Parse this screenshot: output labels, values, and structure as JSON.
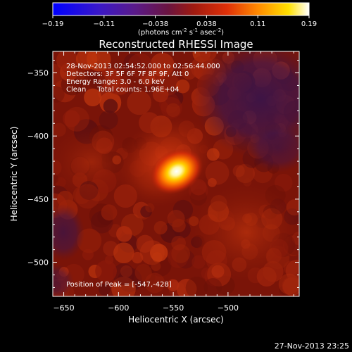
{
  "chart_data": {
    "type": "heatmap",
    "title": "Reconstructed RHESSI Image",
    "xlabel": "Heliocentric X (arcsec)",
    "ylabel": "Heliocentric Y (arcsec)",
    "xlim": [
      -660,
      -435
    ],
    "ylim": [
      -527,
      -333
    ],
    "x_ticks": [
      -650,
      -600,
      -550,
      -500
    ],
    "y_ticks": [
      -350,
      -400,
      -450,
      -500
    ],
    "colorbar": {
      "colormap": "IDL color table 3 style: blue-purple-red-orange-yellow-white",
      "min": -0.19,
      "max": 0.19,
      "ticks": [
        "-0.19",
        "-0.11",
        "-0.038",
        "0.038",
        "0.11",
        "0.19"
      ],
      "units_text": "(photons cm",
      "units_parts": [
        "(photons cm",
        "-2",
        " s",
        "-1",
        " asec",
        "-2",
        ")"
      ]
    },
    "annotations": [
      "28-Nov-2013 02:54:52.000 to 02:56:44.000",
      "Detectors: 3F 5F 6F 7F 8F 9F, Att 0",
      "Energy Range: 3.0 - 6.0 keV",
      "Clean     Total counts: 1.96E+04"
    ],
    "peak_label": "Position of Peak = [-547,-428]",
    "peak": {
      "x": -547,
      "y": -428
    },
    "grid": false,
    "colors": {
      "background": "#000000",
      "image_base": "#7a1408",
      "dark_region": "#3a1040",
      "peak_core": "#ffffff"
    }
  },
  "footer": {
    "timestamp": "27-Nov-2013 23:25"
  }
}
